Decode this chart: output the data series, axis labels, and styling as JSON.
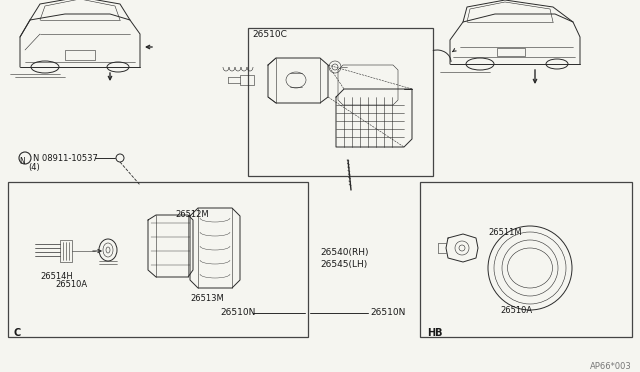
{
  "bg_color": "#f5f5f0",
  "line_color": "#2a2a2a",
  "text_color": "#1a1a1a",
  "border_color": "#333333",
  "fig_width": 6.4,
  "fig_height": 3.72,
  "dpi": 100,
  "watermark": "AP66*003",
  "label_26510C": "26510C",
  "label_bolt": "N 08911-10537",
  "label_bolt_qty": "(4)",
  "label_C": "C",
  "label_HB": "HB",
  "label_26512M": "26512M",
  "label_26514H": "26514H",
  "label_26510A": "26510A",
  "label_26513M": "26513M",
  "label_26510N_L": "26510N",
  "label_26510N_R": "26510N",
  "label_26540RH": "26540(RH)",
  "label_26545LH": "26545(LH)",
  "label_26511M": "26511M",
  "label_26510A_R": "26510A"
}
